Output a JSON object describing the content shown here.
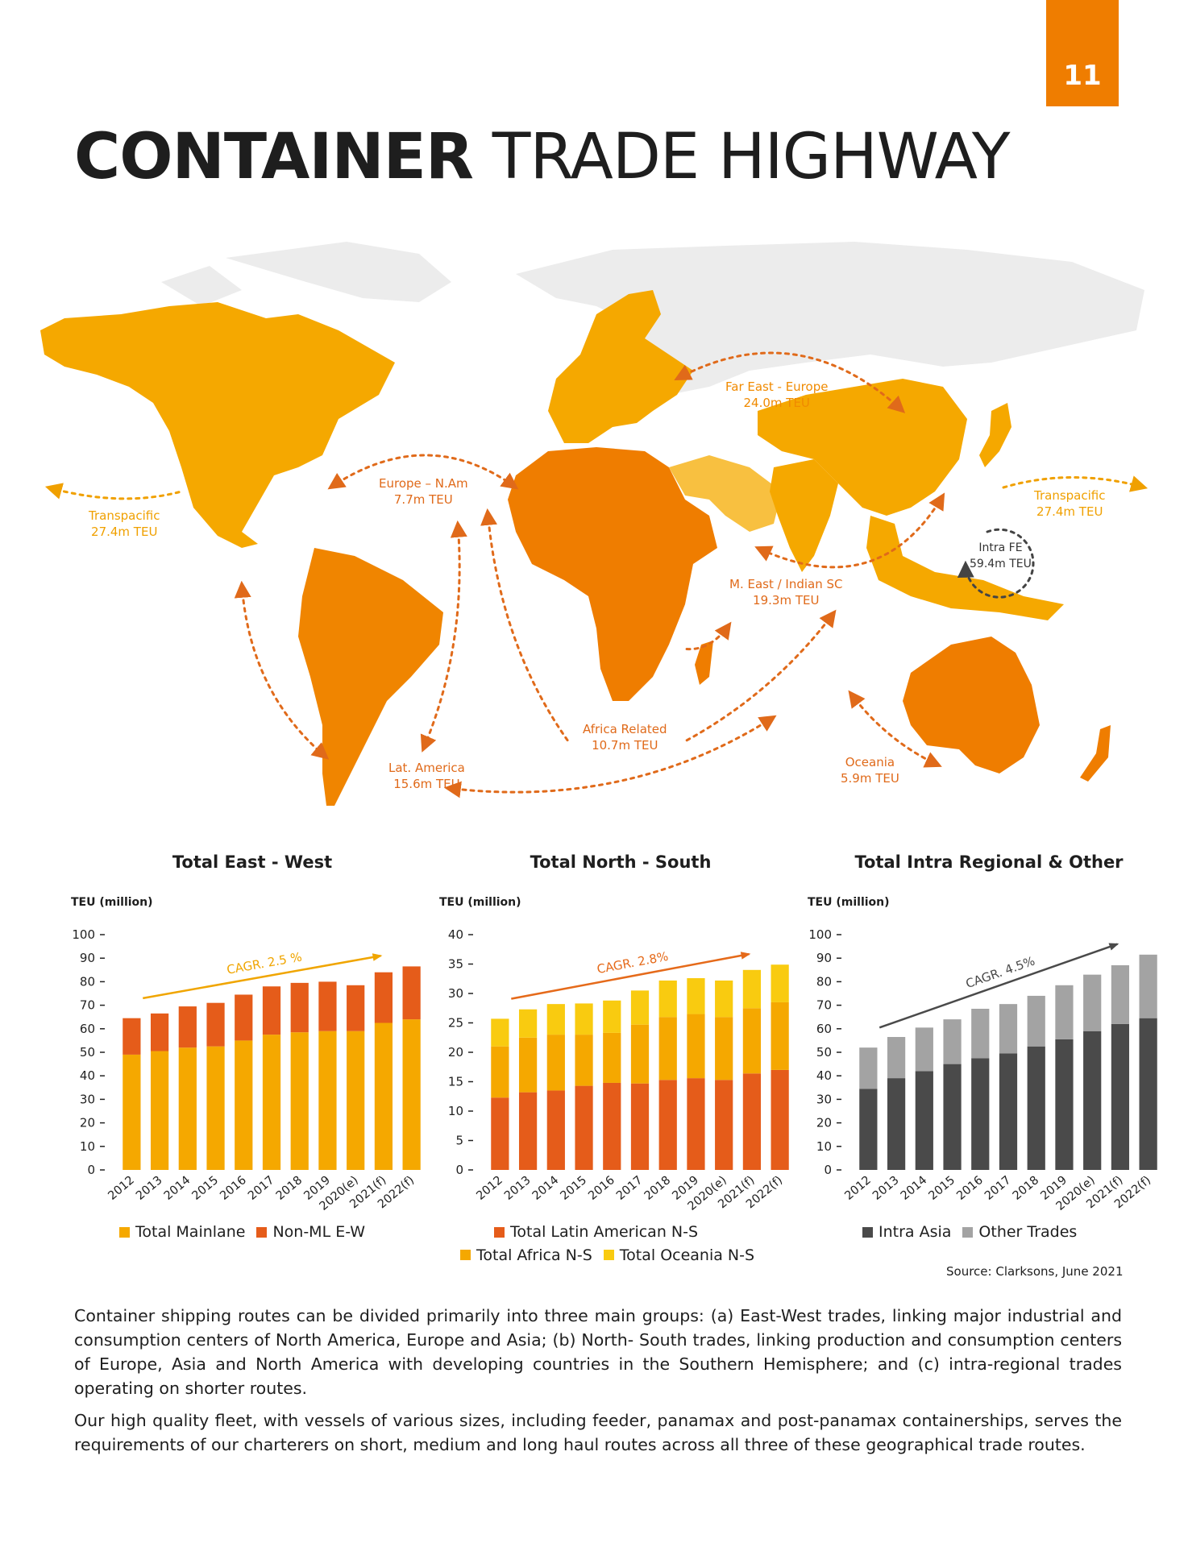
{
  "page_number": "11",
  "title": {
    "bold": "CONTAINER",
    "light": "TRADE HIGHWAY"
  },
  "colors": {
    "orange_dark": "#ef7d00",
    "orange_red": "#e55c1a",
    "amber": "#f5a800",
    "yellow": "#f9cb10",
    "gray_dark": "#4a4a4a",
    "gray_light": "#a3a3a3"
  },
  "map": {
    "routes": [
      {
        "name": "Far East - Europe",
        "value": "24.0m TEU"
      },
      {
        "name": "Europe – N.Am",
        "value": "7.7m TEU"
      },
      {
        "name": "Transpacific",
        "value": "27.4m TEU"
      },
      {
        "name": "Transpacific",
        "value": "27.4m TEU"
      },
      {
        "name": "Intra FE",
        "value": "59.4m TEU"
      },
      {
        "name": "M. East / Indian SC",
        "value": "19.3m TEU"
      },
      {
        "name": "Africa Related",
        "value": "10.7m TEU"
      },
      {
        "name": "Lat. America",
        "value": "15.6m TEU"
      },
      {
        "name": "Oceania",
        "value": "5.9m TEU"
      }
    ]
  },
  "chart_data": [
    {
      "type": "bar",
      "stacked": true,
      "title": "Total East - West",
      "ylabel": "TEU (million)",
      "ylim": [
        0,
        100
      ],
      "yticks": [
        0,
        10,
        20,
        30,
        40,
        50,
        60,
        70,
        80,
        90,
        100
      ],
      "categories": [
        "2012",
        "2013",
        "2014",
        "2015",
        "2016",
        "2017",
        "2018",
        "2019",
        "2020(e)",
        "2021(f)",
        "2022(f)"
      ],
      "series": [
        {
          "name": "Total Mainlane",
          "color": "#f5a800",
          "values": [
            49,
            50.5,
            52,
            52.5,
            55,
            57.5,
            58.5,
            59,
            59,
            62.5,
            64
          ]
        },
        {
          "name": "Non-ML E-W",
          "color": "#e55c1a",
          "values": [
            15.5,
            16,
            17.5,
            18.5,
            19.5,
            20.5,
            21,
            21,
            19.5,
            21.5,
            22.5
          ]
        }
      ],
      "annotation": "CAGR. 2.5 %",
      "annotation_color": "#f0a500"
    },
    {
      "type": "bar",
      "stacked": true,
      "title": "Total North - South",
      "ylabel": "TEU (million)",
      "ylim": [
        0,
        40
      ],
      "yticks": [
        0,
        5,
        10,
        15,
        20,
        25,
        30,
        35,
        40
      ],
      "categories": [
        "2012",
        "2013",
        "2014",
        "2015",
        "2016",
        "2017",
        "2018",
        "2019",
        "2020(e)",
        "2021(f)",
        "2022(f)"
      ],
      "series": [
        {
          "name": "Total Latin American N-S",
          "color": "#e55c1a",
          "values": [
            12.3,
            13.2,
            13.5,
            14.3,
            14.8,
            14.7,
            15.3,
            15.6,
            15.3,
            16.4,
            17
          ]
        },
        {
          "name": "Total Africa N-S",
          "color": "#f5a800",
          "values": [
            8.7,
            9.3,
            9.5,
            8.7,
            8.5,
            10,
            10.7,
            10.9,
            10.7,
            11.1,
            11.5
          ]
        },
        {
          "name": "Total Oceania N-S",
          "color": "#f9cb10",
          "values": [
            4.7,
            4.8,
            5.2,
            5.3,
            5.5,
            5.8,
            6.2,
            6.1,
            6.2,
            6.5,
            6.4
          ]
        }
      ],
      "annotation": "CAGR. 2.8%",
      "annotation_color": "#e56a1a"
    },
    {
      "type": "bar",
      "stacked": true,
      "title": "Total Intra Regional & Other",
      "ylabel": "TEU (million)",
      "ylim": [
        0,
        100
      ],
      "yticks": [
        0,
        10,
        20,
        30,
        40,
        50,
        60,
        70,
        80,
        90,
        100
      ],
      "categories": [
        "2012",
        "2013",
        "2014",
        "2015",
        "2016",
        "2017",
        "2018",
        "2019",
        "2020(e)",
        "2021(f)",
        "2022(f)"
      ],
      "series": [
        {
          "name": "Intra Asia",
          "color": "#4a4a4a",
          "values": [
            34.5,
            39,
            42,
            45,
            47.5,
            49.5,
            52.5,
            55.5,
            59,
            62,
            64.5
          ]
        },
        {
          "name": "Other Trades",
          "color": "#a3a3a3",
          "values": [
            17.5,
            17.5,
            18.5,
            19,
            21,
            21,
            21.5,
            23,
            24,
            25,
            27
          ]
        }
      ],
      "annotation": "CAGR. 4.5%",
      "annotation_color": "#4a4a4a"
    }
  ],
  "source": "Source: Clarksons, June 2021",
  "paragraphs": [
    "Container shipping routes can be divided primarily into three main groups: (a) East-West trades, linking major industrial and consumption centers of North America, Europe and Asia; (b) North- South trades, linking production and consumption centers of Europe, Asia and North America with developing countries in the Southern Hemisphere; and (c) intra-regional trades operating on shorter routes.",
    "Our high quality fleet, with vessels of various sizes, including feeder, panamax and post-panamax containerships, serves the requirements of our charterers on short, medium and long haul routes across all three of these geographical trade routes."
  ]
}
